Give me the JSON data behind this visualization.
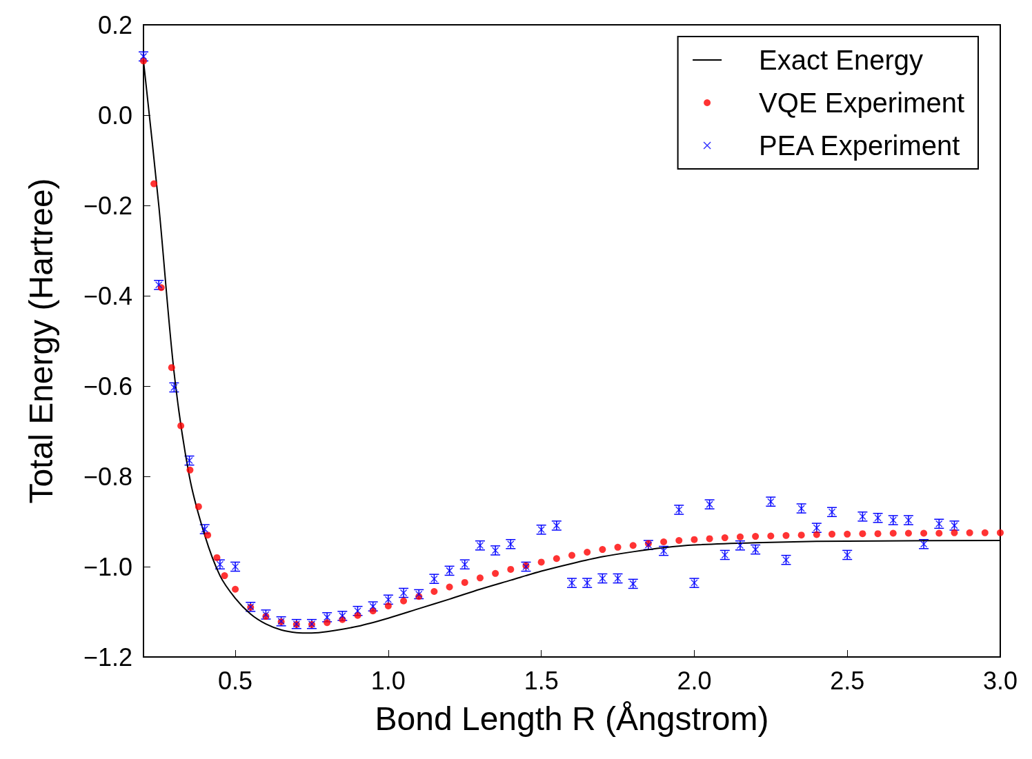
{
  "chart_data": {
    "type": "line",
    "xlabel": "Bond Length R (Ångstrom)",
    "ylabel": "Total Energy (Hartree)",
    "xlim": [
      0.2,
      3.0
    ],
    "ylim": [
      -1.2,
      0.2
    ],
    "xticks": [
      {
        "value": 0.5,
        "label": "0.5"
      },
      {
        "value": 1.0,
        "label": "1.0"
      },
      {
        "value": 1.5,
        "label": "1.5"
      },
      {
        "value": 2.0,
        "label": "2.0"
      },
      {
        "value": 2.5,
        "label": "2.5"
      },
      {
        "value": 3.0,
        "label": "3.0"
      }
    ],
    "yticks": [
      {
        "value": -1.2,
        "label": "−1.2"
      },
      {
        "value": -1.0,
        "label": "−1.0"
      },
      {
        "value": -0.8,
        "label": "−0.8"
      },
      {
        "value": -0.6,
        "label": "−0.6"
      },
      {
        "value": -0.4,
        "label": "−0.4"
      },
      {
        "value": -0.2,
        "label": "−0.2"
      },
      {
        "value": 0,
        "label": "0.0"
      },
      {
        "value": 0.2,
        "label": "0.2"
      }
    ],
    "grid": false,
    "legend": "top right",
    "series": [
      {
        "name": "Exact Energy",
        "color": "#000000",
        "marker": "none",
        "line_style": "solid",
        "x": [
          0.2,
          0.25,
          0.3,
          0.35,
          0.4,
          0.45,
          0.5,
          0.55,
          0.6,
          0.65,
          0.7,
          0.75,
          0.8,
          0.9,
          1.0,
          1.1,
          1.2,
          1.3,
          1.4,
          1.5,
          1.6,
          1.7,
          1.8,
          1.9,
          2.0,
          2.2,
          2.4,
          2.6,
          3.0
        ],
        "values": [
          0.12,
          -0.2,
          -0.57,
          -0.8,
          -0.93,
          -1.02,
          -1.07,
          -1.105,
          -1.127,
          -1.14,
          -1.146,
          -1.147,
          -1.144,
          -1.132,
          -1.114,
          -1.093,
          -1.072,
          -1.05,
          -1.03,
          -1.01,
          -0.993,
          -0.978,
          -0.967,
          -0.958,
          -0.952,
          -0.947,
          -0.944,
          -0.943,
          -0.942
        ]
      },
      {
        "name": "VQE Experiment",
        "type": "scatter",
        "color": "#ff0000",
        "marker": "circle",
        "x": [
          0.2,
          0.234,
          0.258,
          0.292,
          0.322,
          0.352,
          0.38,
          0.41,
          0.44,
          0.465,
          0.5,
          0.55,
          0.6,
          0.65,
          0.7,
          0.75,
          0.8,
          0.85,
          0.9,
          0.95,
          1.0,
          1.05,
          1.1,
          1.15,
          1.2,
          1.25,
          1.3,
          1.35,
          1.4,
          1.45,
          1.5,
          1.55,
          1.6,
          1.65,
          1.7,
          1.75,
          1.8,
          1.85,
          1.9,
          1.95,
          2.0,
          2.05,
          2.1,
          2.15,
          2.2,
          2.25,
          2.3,
          2.35,
          2.4,
          2.45,
          2.5,
          2.55,
          2.6,
          2.65,
          2.7,
          2.75,
          2.8,
          2.85,
          2.9,
          2.95,
          3.0
        ],
        "values": [
          0.12,
          -0.152,
          -0.382,
          -0.559,
          -0.688,
          -0.786,
          -0.867,
          -0.93,
          -0.98,
          -1.02,
          -1.05,
          -1.09,
          -1.11,
          -1.122,
          -1.128,
          -1.128,
          -1.124,
          -1.117,
          -1.108,
          -1.098,
          -1.087,
          -1.076,
          -1.066,
          -1.055,
          -1.045,
          -1.035,
          -1.025,
          -1.015,
          -1.006,
          -0.998,
          -0.99,
          -0.982,
          -0.975,
          -0.968,
          -0.962,
          -0.957,
          -0.953,
          -0.949,
          -0.945,
          -0.942,
          -0.94,
          -0.938,
          -0.936,
          -0.934,
          -0.933,
          -0.932,
          -0.931,
          -0.93,
          -0.929,
          -0.928,
          -0.928,
          -0.927,
          -0.927,
          -0.926,
          -0.926,
          -0.926,
          -0.926,
          -0.925,
          -0.925,
          -0.925,
          -0.925
        ]
      },
      {
        "name": "PEA Experiment",
        "type": "scatter",
        "color": "#0000ff",
        "marker": "cross",
        "x": [
          0.2,
          0.25,
          0.3,
          0.35,
          0.4,
          0.45,
          0.5,
          0.55,
          0.6,
          0.65,
          0.7,
          0.75,
          0.8,
          0.85,
          0.9,
          0.95,
          1.0,
          1.05,
          1.1,
          1.15,
          1.2,
          1.25,
          1.3,
          1.35,
          1.4,
          1.45,
          1.5,
          1.55,
          1.6,
          1.65,
          1.7,
          1.75,
          1.8,
          1.85,
          1.9,
          1.95,
          2.0,
          2.05,
          2.1,
          2.15,
          2.2,
          2.25,
          2.3,
          2.35,
          2.4,
          2.45,
          2.5,
          2.55,
          2.6,
          2.65,
          2.7,
          2.75,
          2.8,
          2.85
        ],
        "values": [
          0.13,
          -0.376,
          -0.603,
          -0.765,
          -0.917,
          -0.995,
          -1.0,
          -1.089,
          -1.106,
          -1.121,
          -1.127,
          -1.127,
          -1.112,
          -1.109,
          -1.098,
          -1.088,
          -1.073,
          -1.058,
          -1.061,
          -1.027,
          -1.009,
          -0.995,
          -0.953,
          -0.964,
          -0.95,
          -1.0,
          -0.918,
          -0.909,
          -1.036,
          -1.036,
          -1.026,
          -1.026,
          -1.038,
          -0.952,
          -0.965,
          -0.874,
          -1.036,
          -0.862,
          -0.974,
          -0.953,
          -0.962,
          -0.856,
          -0.985,
          -0.871,
          -0.914,
          -0.879,
          -0.974,
          -0.889,
          -0.892,
          -0.897,
          -0.897,
          -0.95,
          -0.905,
          -0.909
        ],
        "errors": [
          0.01,
          0.01,
          0.01,
          0.01,
          0.01,
          0.01,
          0.01,
          0.01,
          0.01,
          0.01,
          0.01,
          0.01,
          0.01,
          0.01,
          0.01,
          0.01,
          0.01,
          0.01,
          0.01,
          0.01,
          0.01,
          0.01,
          0.01,
          0.01,
          0.01,
          0.01,
          0.01,
          0.01,
          0.01,
          0.01,
          0.01,
          0.01,
          0.01,
          0.01,
          0.01,
          0.01,
          0.01,
          0.01,
          0.01,
          0.01,
          0.01,
          0.01,
          0.01,
          0.01,
          0.01,
          0.01,
          0.01,
          0.01,
          0.01,
          0.01,
          0.01,
          0.01,
          0.01,
          0.01
        ]
      }
    ]
  }
}
